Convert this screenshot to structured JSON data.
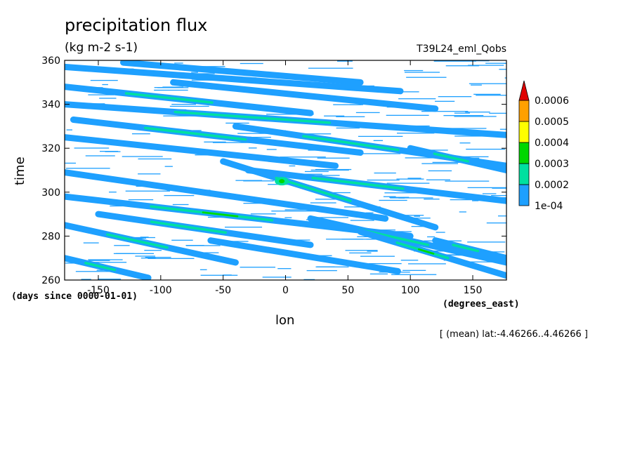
{
  "chart_data": {
    "type": "heatmap",
    "title": "precipitation flux",
    "units": "(kg m-2 s-1)",
    "run_id": "T39L24_eml_Qobs",
    "xlabel": "lon",
    "ylabel": "time",
    "x_unit_note": "(degrees_east)",
    "y_unit_note": "(days since 0000-01-01)",
    "footnote": "[ (mean) lat:-4.46266..4.46266 ]",
    "xlim": [
      -177,
      177
    ],
    "ylim": [
      260,
      360
    ],
    "x_ticks": [
      -150,
      -100,
      -50,
      0,
      50,
      100,
      150
    ],
    "y_ticks": [
      260,
      280,
      300,
      320,
      340,
      360
    ],
    "colorbar": {
      "levels": [
        "1e-04",
        "0.0002",
        "0.0003",
        "0.0004",
        "0.0005",
        "0.0006"
      ],
      "colors": [
        "#1ea0ff",
        "#00e0a0",
        "#00d700",
        "#ffff00",
        "#ffa000",
        "#e00000"
      ]
    },
    "bands": [
      {
        "lon0": -177,
        "t0": 357,
        "lon1": 92,
        "t1": 346,
        "level": 1
      },
      {
        "lon0": -130,
        "t0": 359,
        "lon1": 60,
        "t1": 350,
        "level": 1
      },
      {
        "lon0": -177,
        "t0": 348,
        "lon1": 20,
        "t1": 336,
        "level": 2
      },
      {
        "lon0": -90,
        "t0": 350,
        "lon1": 120,
        "t1": 338,
        "level": 1
      },
      {
        "lon0": -177,
        "t0": 340,
        "lon1": 177,
        "t1": 326,
        "level": 2
      },
      {
        "lon0": -170,
        "t0": 333,
        "lon1": 60,
        "t1": 318,
        "level": 2
      },
      {
        "lon0": -177,
        "t0": 325,
        "lon1": 40,
        "t1": 312,
        "level": 1
      },
      {
        "lon0": -40,
        "t0": 330,
        "lon1": 177,
        "t1": 312,
        "level": 2
      },
      {
        "lon0": 100,
        "t0": 320,
        "lon1": 177,
        "t1": 310,
        "level": 2
      },
      {
        "lon0": -50,
        "t0": 314,
        "lon1": 120,
        "t1": 284,
        "level": 2
      },
      {
        "lon0": -30,
        "t0": 310,
        "lon1": 177,
        "t1": 296,
        "level": 2
      },
      {
        "lon0": -177,
        "t0": 309,
        "lon1": 80,
        "t1": 288,
        "level": 1
      },
      {
        "lon0": -177,
        "t0": 298,
        "lon1": 100,
        "t1": 280,
        "level": 3
      },
      {
        "lon0": -150,
        "t0": 290,
        "lon1": 20,
        "t1": 276,
        "level": 2
      },
      {
        "lon0": -177,
        "t0": 285,
        "lon1": -40,
        "t1": 268,
        "level": 2
      },
      {
        "lon0": 20,
        "t0": 288,
        "lon1": 177,
        "t1": 268,
        "level": 2
      },
      {
        "lon0": 60,
        "t0": 282,
        "lon1": 177,
        "t1": 262,
        "level": 3
      },
      {
        "lon0": -177,
        "t0": 270,
        "lon1": -110,
        "t1": 261,
        "level": 2
      },
      {
        "lon0": -60,
        "t0": 278,
        "lon1": 90,
        "t1": 264,
        "level": 1
      },
      {
        "lon0": 120,
        "t0": 278,
        "lon1": 177,
        "t1": 270,
        "level": 2
      }
    ]
  }
}
